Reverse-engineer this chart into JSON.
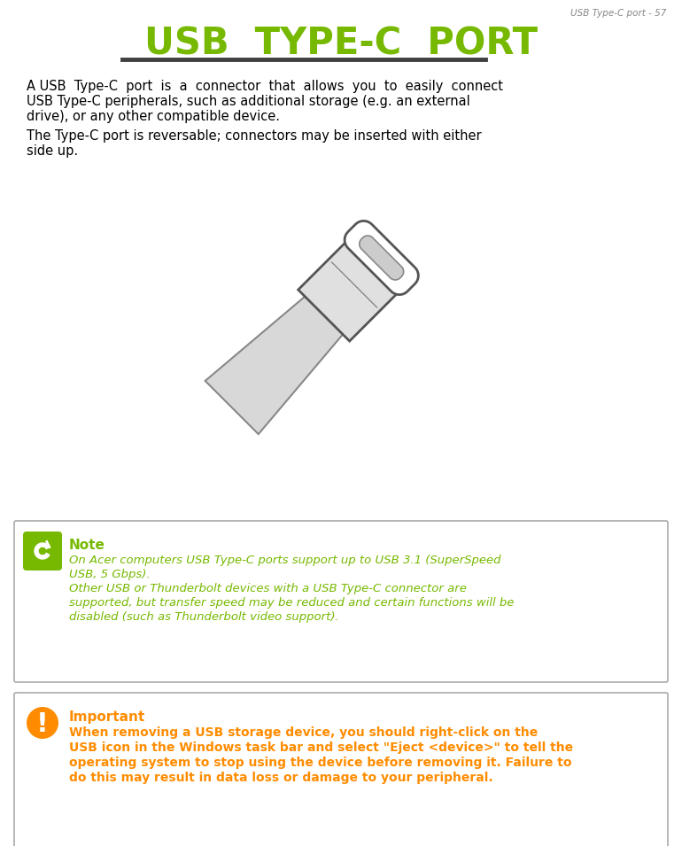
{
  "page_label": "USB Type-C port - 57",
  "title_color": "#76b900",
  "underline_color": "#404040",
  "note_title": "Note",
  "note_color": "#76b900",
  "note_lines": [
    "On Acer computers USB Type-C ports support up to USB 3.1 (SuperSpeed",
    "USB, 5 Gbps).",
    "Other USB or Thunderbolt devices with a USB Type-C connector are",
    "supported, but transfer speed may be reduced and certain functions will be",
    "disabled (such as Thunderbolt video support)."
  ],
  "important_title": "Important",
  "important_color": "#ff8c00",
  "important_lines": [
    "When removing a USB storage device, you should right-click on the",
    "USB icon in the Windows task bar and select \"Eject <device>\" to tell the",
    "operating system to stop using the device before removing it. Failure to",
    "do this may result in data loss or damage to your peripheral."
  ],
  "bg_color": "#ffffff",
  "body_text_color": "#000000",
  "border_color": "#aaaaaa",
  "page_label_color": "#888888",
  "para1_lines": [
    "A USB  Type-C  port  is  a  connector  that  allows  you  to  easily  connect",
    "USB Type-C peripherals, such as additional storage (e.g. an external",
    "drive), or any other compatible device."
  ],
  "para2_lines": [
    "The Type-C port is reversable; connectors may be inserted with either",
    "side up."
  ]
}
